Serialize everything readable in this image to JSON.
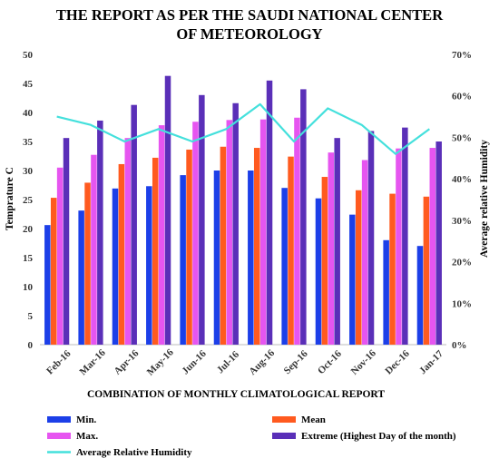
{
  "chart_data": {
    "type": "bar",
    "title_line1": "THE REPORT AS PER THE SAUDI NATIONAL CENTER",
    "title_line2": "OF METEOROLOGY",
    "xlabel": "COMBINATION OF MONTHLY CLIMATOLOGICAL REPORT",
    "ylabel": "Temprature C",
    "y2label": "Average relative Humidity",
    "ylim": [
      0,
      50
    ],
    "y2lim": [
      0,
      70
    ],
    "yticks": [
      "0",
      "5",
      "10",
      "15",
      "20",
      "25",
      "30",
      "35",
      "40",
      "45",
      "50"
    ],
    "y2ticks": [
      "0%",
      "10%",
      "20%",
      "30%",
      "40%",
      "50%",
      "60%",
      "70%"
    ],
    "grid": false,
    "legend_position": "bottom",
    "categories": [
      "Feb-16",
      "Mar-16",
      "Apr-16",
      "May-16",
      "Jun-16",
      "Jul-16",
      "Aug-16",
      "Sep-16",
      "Oct-16",
      "Nov-16",
      "Dec-16",
      "Jan-17"
    ],
    "series": [
      {
        "name": "Min.",
        "kind": "bar",
        "axis": "left",
        "color": "#1c3fe8",
        "values": [
          20.6,
          23.1,
          26.9,
          27.3,
          29.2,
          30.0,
          30.0,
          27.0,
          25.2,
          22.4,
          18.0,
          17.0
        ]
      },
      {
        "name": "Mean",
        "kind": "bar",
        "axis": "left",
        "color": "#ff5a1f",
        "values": [
          25.3,
          27.9,
          31.1,
          32.2,
          33.6,
          34.1,
          33.9,
          32.4,
          28.9,
          26.6,
          26.0,
          25.5
        ]
      },
      {
        "name": "Max.",
        "kind": "bar",
        "axis": "left",
        "color": "#e655f0",
        "values": [
          30.5,
          32.7,
          35.6,
          37.8,
          38.4,
          38.7,
          38.8,
          39.1,
          33.1,
          31.8,
          33.8,
          33.9
        ]
      },
      {
        "name": "Extreme (Highest Day of the month)",
        "kind": "bar",
        "axis": "left",
        "color": "#5a2fb8",
        "values": [
          35.6,
          38.6,
          41.3,
          46.3,
          43.0,
          41.6,
          45.5,
          44.0,
          35.6,
          36.8,
          37.4,
          35.0
        ]
      },
      {
        "name": "Average Relative Humidity",
        "kind": "line",
        "axis": "right",
        "unit": "%",
        "color": "#44e0dc",
        "values": [
          55,
          53,
          49,
          52,
          49,
          52,
          58,
          49,
          57,
          53,
          46,
          52
        ]
      }
    ]
  }
}
